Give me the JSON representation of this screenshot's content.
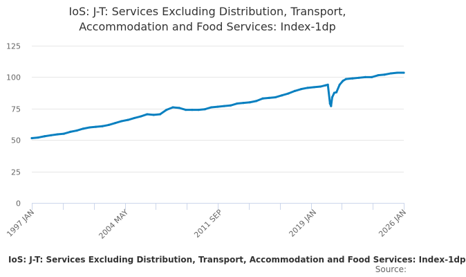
{
  "title_line1": "IoS: J-T: Services Excluding Distribution, Transport,",
  "title_line2": "Accommodation and Food Services: Index-1dp",
  "legend_label": "IoS: J-T: Services Excluding Distribution, Transport, Accommodation and Food Services: Index-1dp",
  "source_label": "Source:",
  "colors": {
    "series": "#0a80c0",
    "grid": "#e6e6e6",
    "axis": "#ccd6eb",
    "text": "#333333",
    "tick_text": "#666666"
  },
  "chart_data": {
    "type": "line",
    "title": "IoS: J-T: Services Excluding Distribution, Transport, Accommodation and Food Services: Index-1dp",
    "xlabel": "",
    "ylabel": "",
    "xlim": [
      1997.0,
      2026.0
    ],
    "ylim": [
      0,
      125
    ],
    "yticks": [
      0,
      25,
      50,
      75,
      100,
      125
    ],
    "xticks": [
      {
        "value": 1997.0,
        "label": "1997 JAN"
      },
      {
        "value": 2004.33,
        "label": "2004 MAY"
      },
      {
        "value": 2011.67,
        "label": "2011 SEP"
      },
      {
        "value": 2019.0,
        "label": "2019 JAN"
      },
      {
        "value": 2026.0,
        "label": "2026 JAN"
      }
    ],
    "grid": true,
    "legend_position": "bottom",
    "series": [
      {
        "name": "IoS: J-T: Services Excluding Distribution, Transport, Accommodation and Food Services: Index-1dp",
        "x": [
          1997.0,
          1997.5,
          1998.0,
          1998.5,
          1999.0,
          1999.5,
          2000.0,
          2000.5,
          2001.0,
          2001.5,
          2002.0,
          2002.5,
          2003.0,
          2003.5,
          2004.0,
          2004.5,
          2005.0,
          2005.5,
          2006.0,
          2006.5,
          2007.0,
          2007.5,
          2008.0,
          2008.5,
          2009.0,
          2009.5,
          2010.0,
          2010.5,
          2011.0,
          2011.5,
          2012.0,
          2012.5,
          2013.0,
          2013.5,
          2014.0,
          2014.5,
          2015.0,
          2015.5,
          2016.0,
          2016.5,
          2017.0,
          2017.5,
          2018.0,
          2018.5,
          2019.0,
          2019.5,
          2019.9,
          2020.08,
          2020.25,
          2020.33,
          2020.42,
          2020.58,
          2020.75,
          2021.0,
          2021.25,
          2021.5,
          2022.0,
          2022.5,
          2023.0,
          2023.5,
          2024.0,
          2024.5,
          2025.0,
          2025.5,
          2026.0
        ],
        "values": [
          51.5,
          52.0,
          53.0,
          53.8,
          54.5,
          55.0,
          56.5,
          57.5,
          59.0,
          60.0,
          60.5,
          61.0,
          62.0,
          63.5,
          65.0,
          66.0,
          67.5,
          68.8,
          70.5,
          70.0,
          70.5,
          74.0,
          76.0,
          75.5,
          74.0,
          74.0,
          74.0,
          74.5,
          76.0,
          76.5,
          77.0,
          77.5,
          79.0,
          79.5,
          80.0,
          81.0,
          83.0,
          83.5,
          84.0,
          85.5,
          87.0,
          89.0,
          90.5,
          91.5,
          92.0,
          92.5,
          93.5,
          94.0,
          79.0,
          77.0,
          84.0,
          87.5,
          88.0,
          94.0,
          97.0,
          98.5,
          99.0,
          99.5,
          100.0,
          100.0,
          101.5,
          102.0,
          103.0,
          103.5,
          103.5
        ]
      }
    ]
  }
}
